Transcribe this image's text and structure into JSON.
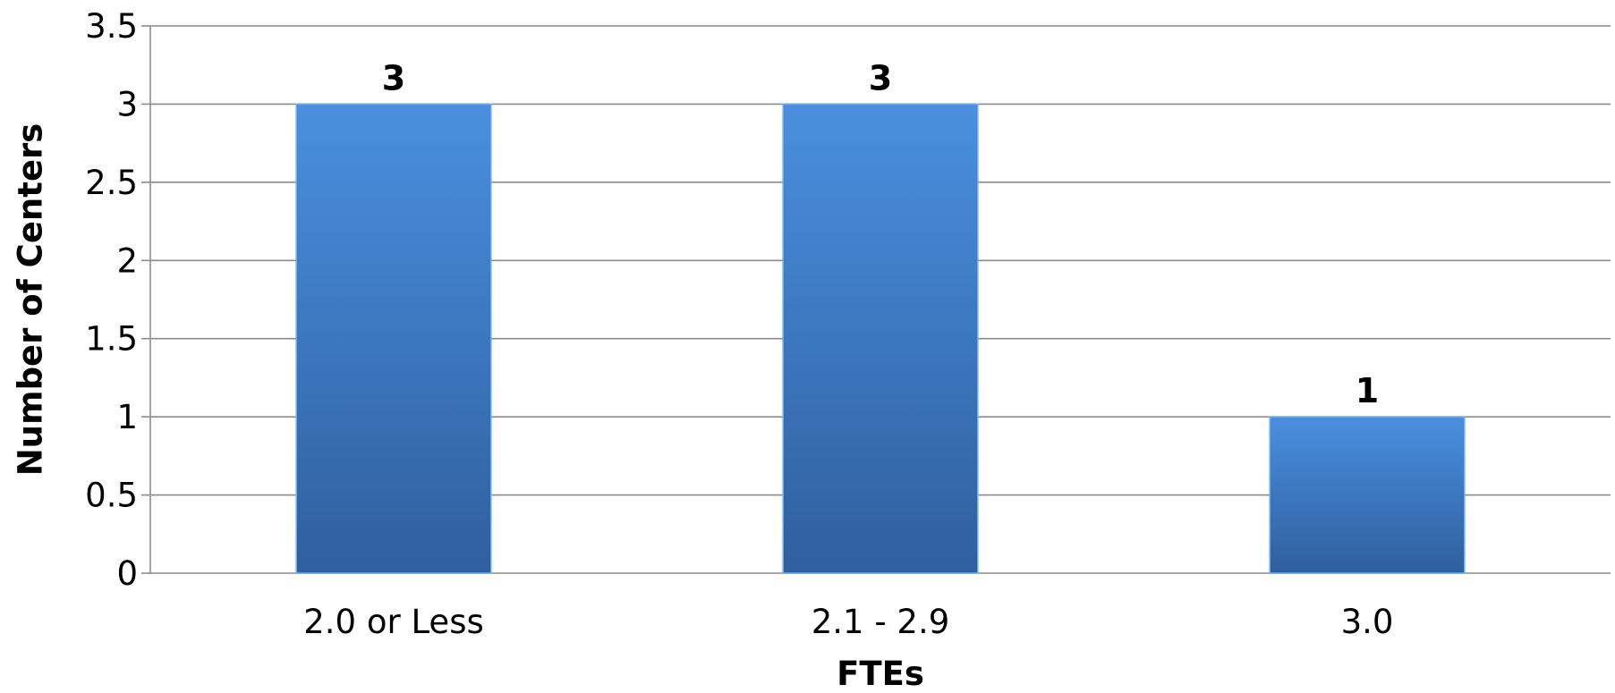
{
  "chart_data": {
    "type": "bar",
    "categories": [
      "2.0 or Less",
      "2.1 - 2.9",
      "3.0"
    ],
    "values": [
      3,
      3,
      1
    ],
    "data_labels": [
      "3",
      "3",
      "1"
    ],
    "title": "",
    "xlabel": "FTEs",
    "ylabel": "Number of Centers",
    "ylim": [
      0,
      3.5
    ],
    "yticks": [
      0,
      0.5,
      1,
      1.5,
      2,
      2.5,
      3,
      3.5
    ],
    "ytick_labels": [
      "0",
      "0.5",
      "1",
      "1.5",
      "2",
      "2.5",
      "3",
      "3.5"
    ],
    "grid": true,
    "legend": "none",
    "colors": {
      "bar_top": "#4a8fdf",
      "bar_bottom": "#2f5f9e",
      "bar_edge": "#6aaeee",
      "grid": "#8c8c8c",
      "text": "#000000"
    }
  }
}
